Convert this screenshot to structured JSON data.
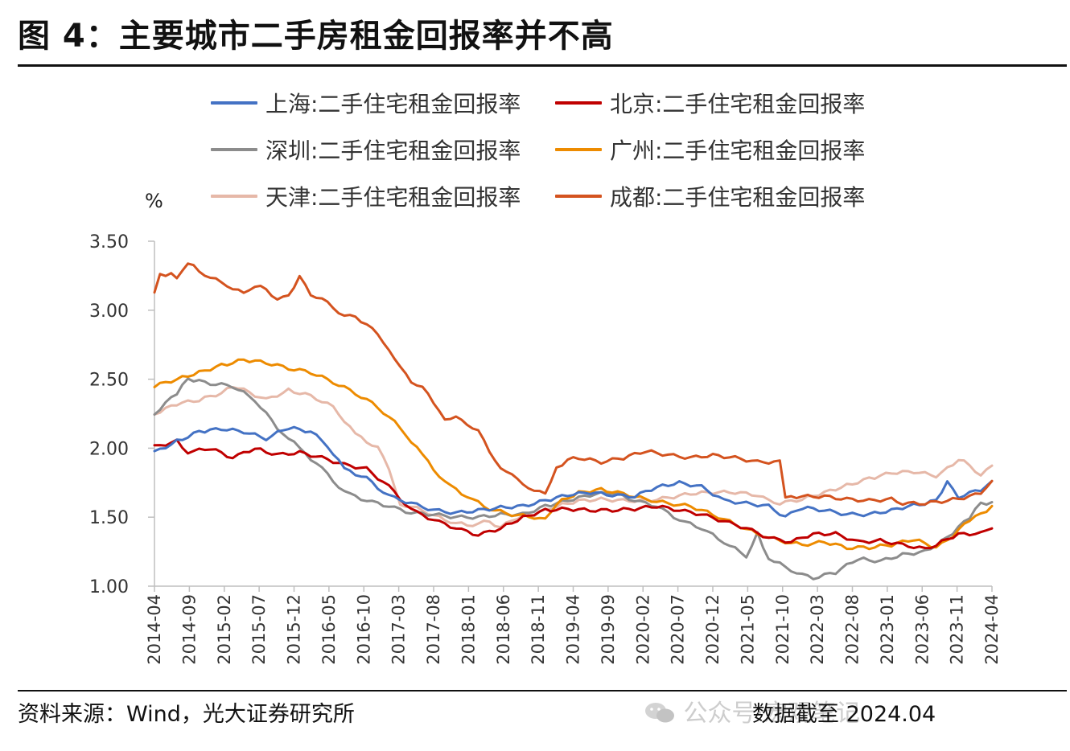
{
  "title": "图 4：主要城市二手房租金回报率并不高",
  "source": "资料来源：Wind，光大证券研究所",
  "cutoff_note": "数据截至 2024.04",
  "watermark": "公众号·宏观笔记",
  "chart_data": {
    "type": "line",
    "title": "",
    "ylabel": "%",
    "xlabel": "",
    "ylim": [
      1.0,
      3.5
    ],
    "yticks": [
      "3.50",
      "3.00",
      "2.50",
      "2.00",
      "1.50",
      "1.00"
    ],
    "x_tick_labels": [
      "2014-04",
      "2014-09",
      "2015-02",
      "2015-07",
      "2015-12",
      "2016-05",
      "2016-10",
      "2017-03",
      "2017-08",
      "2018-01",
      "2018-06",
      "2018-11",
      "2019-04",
      "2019-09",
      "2020-02",
      "2020-07",
      "2020-12",
      "2021-05",
      "2021-10",
      "2022-03",
      "2022-08",
      "2023-01",
      "2023-06",
      "2023-11",
      "2024-04"
    ],
    "x_start": "2014-04",
    "x_end": "2024-04",
    "n_points": 121,
    "series": [
      {
        "name": "上海:二手住宅租金回报率",
        "color": "#4472c4",
        "anchors": [
          [
            0,
            1.97
          ],
          [
            4,
            2.05
          ],
          [
            8,
            2.12
          ],
          [
            12,
            2.14
          ],
          [
            16,
            2.12
          ],
          [
            20,
            2.07
          ],
          [
            24,
            2.15
          ],
          [
            28,
            2.12
          ],
          [
            31,
            2.02
          ],
          [
            34,
            1.85
          ],
          [
            38,
            1.78
          ],
          [
            42,
            1.65
          ],
          [
            46,
            1.6
          ],
          [
            50,
            1.55
          ],
          [
            54,
            1.53
          ],
          [
            58,
            1.55
          ],
          [
            62,
            1.57
          ],
          [
            66,
            1.58
          ],
          [
            70,
            1.62
          ],
          [
            74,
            1.66
          ],
          [
            78,
            1.68
          ],
          [
            82,
            1.66
          ],
          [
            86,
            1.65
          ],
          [
            90,
            1.72
          ],
          [
            94,
            1.75
          ],
          [
            98,
            1.72
          ],
          [
            102,
            1.62
          ],
          [
            106,
            1.6
          ],
          [
            110,
            1.58
          ],
          [
            113,
            1.5
          ],
          [
            116,
            1.57
          ],
          [
            120,
            1.55
          ],
          [
            124,
            1.52
          ],
          [
            128,
            1.52
          ],
          [
            132,
            1.55
          ],
          [
            135,
            1.58
          ],
          [
            138,
            1.6
          ],
          [
            140,
            1.62
          ],
          [
            142,
            1.76
          ],
          [
            144,
            1.65
          ],
          [
            148,
            1.7
          ],
          [
            150,
            1.75
          ]
        ]
      },
      {
        "name": "北京:二手住宅租金回报率",
        "color": "#c00000",
        "anchors": [
          [
            0,
            2.01
          ],
          [
            4,
            2.05
          ],
          [
            6,
            1.97
          ],
          [
            10,
            2.0
          ],
          [
            14,
            1.93
          ],
          [
            18,
            2.0
          ],
          [
            22,
            1.95
          ],
          [
            26,
            1.97
          ],
          [
            30,
            1.93
          ],
          [
            34,
            1.88
          ],
          [
            38,
            1.85
          ],
          [
            42,
            1.72
          ],
          [
            46,
            1.55
          ],
          [
            50,
            1.48
          ],
          [
            54,
            1.42
          ],
          [
            58,
            1.37
          ],
          [
            62,
            1.42
          ],
          [
            66,
            1.5
          ],
          [
            70,
            1.55
          ],
          [
            74,
            1.56
          ],
          [
            78,
            1.55
          ],
          [
            82,
            1.55
          ],
          [
            86,
            1.56
          ],
          [
            90,
            1.58
          ],
          [
            94,
            1.55
          ],
          [
            98,
            1.52
          ],
          [
            102,
            1.47
          ],
          [
            106,
            1.42
          ],
          [
            110,
            1.35
          ],
          [
            114,
            1.32
          ],
          [
            118,
            1.38
          ],
          [
            122,
            1.38
          ],
          [
            126,
            1.32
          ],
          [
            130,
            1.33
          ],
          [
            134,
            1.3
          ],
          [
            138,
            1.27
          ],
          [
            140,
            1.3
          ],
          [
            144,
            1.38
          ],
          [
            148,
            1.38
          ],
          [
            150,
            1.43
          ]
        ]
      },
      {
        "name": "深圳:二手住宅租金回报率",
        "color": "#8c8c8c",
        "anchors": [
          [
            0,
            2.25
          ],
          [
            4,
            2.4
          ],
          [
            6,
            2.5
          ],
          [
            10,
            2.47
          ],
          [
            14,
            2.45
          ],
          [
            18,
            2.35
          ],
          [
            22,
            2.15
          ],
          [
            26,
            2.0
          ],
          [
            30,
            1.85
          ],
          [
            34,
            1.68
          ],
          [
            38,
            1.62
          ],
          [
            42,
            1.58
          ],
          [
            46,
            1.53
          ],
          [
            50,
            1.52
          ],
          [
            54,
            1.5
          ],
          [
            58,
            1.5
          ],
          [
            62,
            1.52
          ],
          [
            66,
            1.52
          ],
          [
            70,
            1.58
          ],
          [
            74,
            1.62
          ],
          [
            78,
            1.66
          ],
          [
            82,
            1.68
          ],
          [
            86,
            1.62
          ],
          [
            90,
            1.58
          ],
          [
            94,
            1.48
          ],
          [
            98,
            1.42
          ],
          [
            102,
            1.32
          ],
          [
            106,
            1.22
          ],
          [
            108,
            1.38
          ],
          [
            110,
            1.2
          ],
          [
            114,
            1.12
          ],
          [
            116,
            1.08
          ],
          [
            118,
            1.06
          ],
          [
            122,
            1.1
          ],
          [
            126,
            1.2
          ],
          [
            130,
            1.18
          ],
          [
            134,
            1.23
          ],
          [
            138,
            1.25
          ],
          [
            142,
            1.35
          ],
          [
            146,
            1.5
          ],
          [
            148,
            1.6
          ],
          [
            150,
            1.6
          ]
        ]
      },
      {
        "name": "广州:二手住宅租金回报率",
        "color": "#ed8b00",
        "anchors": [
          [
            0,
            2.45
          ],
          [
            4,
            2.5
          ],
          [
            8,
            2.55
          ],
          [
            12,
            2.6
          ],
          [
            16,
            2.64
          ],
          [
            20,
            2.62
          ],
          [
            24,
            2.58
          ],
          [
            28,
            2.55
          ],
          [
            32,
            2.48
          ],
          [
            36,
            2.4
          ],
          [
            40,
            2.3
          ],
          [
            44,
            2.15
          ],
          [
            48,
            1.95
          ],
          [
            52,
            1.75
          ],
          [
            56,
            1.65
          ],
          [
            60,
            1.56
          ],
          [
            64,
            1.52
          ],
          [
            68,
            1.5
          ],
          [
            70,
            1.48
          ],
          [
            72,
            1.6
          ],
          [
            76,
            1.68
          ],
          [
            80,
            1.7
          ],
          [
            84,
            1.67
          ],
          [
            88,
            1.63
          ],
          [
            92,
            1.6
          ],
          [
            96,
            1.58
          ],
          [
            100,
            1.52
          ],
          [
            104,
            1.45
          ],
          [
            108,
            1.38
          ],
          [
            112,
            1.33
          ],
          [
            116,
            1.3
          ],
          [
            120,
            1.32
          ],
          [
            124,
            1.28
          ],
          [
            128,
            1.28
          ],
          [
            132,
            1.3
          ],
          [
            136,
            1.34
          ],
          [
            140,
            1.28
          ],
          [
            142,
            1.33
          ],
          [
            146,
            1.48
          ],
          [
            148,
            1.52
          ],
          [
            150,
            1.58
          ]
        ]
      },
      {
        "name": "天津:二手住宅租金回报率",
        "color": "#e6b8a8",
        "anchors": [
          [
            0,
            2.25
          ],
          [
            4,
            2.32
          ],
          [
            8,
            2.35
          ],
          [
            12,
            2.4
          ],
          [
            14,
            2.45
          ],
          [
            16,
            2.42
          ],
          [
            20,
            2.35
          ],
          [
            24,
            2.42
          ],
          [
            28,
            2.38
          ],
          [
            32,
            2.3
          ],
          [
            36,
            2.1
          ],
          [
            40,
            2.0
          ],
          [
            42,
            1.85
          ],
          [
            44,
            1.6
          ],
          [
            48,
            1.55
          ],
          [
            52,
            1.48
          ],
          [
            56,
            1.44
          ],
          [
            60,
            1.47
          ],
          [
            62,
            1.42
          ],
          [
            64,
            1.48
          ],
          [
            68,
            1.52
          ],
          [
            72,
            1.58
          ],
          [
            76,
            1.62
          ],
          [
            80,
            1.63
          ],
          [
            84,
            1.62
          ],
          [
            88,
            1.62
          ],
          [
            92,
            1.64
          ],
          [
            96,
            1.67
          ],
          [
            100,
            1.68
          ],
          [
            104,
            1.68
          ],
          [
            108,
            1.66
          ],
          [
            110,
            1.62
          ],
          [
            112,
            1.6
          ],
          [
            116,
            1.63
          ],
          [
            120,
            1.68
          ],
          [
            124,
            1.73
          ],
          [
            128,
            1.78
          ],
          [
            132,
            1.82
          ],
          [
            136,
            1.83
          ],
          [
            140,
            1.8
          ],
          [
            142,
            1.85
          ],
          [
            144,
            1.92
          ],
          [
            146,
            1.88
          ],
          [
            148,
            1.8
          ],
          [
            150,
            1.87
          ]
        ]
      },
      {
        "name": "成都:二手住宅租金回报率",
        "color": "#d4531f",
        "anchors": [
          [
            0,
            3.13
          ],
          [
            1,
            3.25
          ],
          [
            3,
            3.27
          ],
          [
            4,
            3.22
          ],
          [
            6,
            3.35
          ],
          [
            8,
            3.28
          ],
          [
            12,
            3.2
          ],
          [
            16,
            3.12
          ],
          [
            18,
            3.18
          ],
          [
            20,
            3.15
          ],
          [
            22,
            3.08
          ],
          [
            24,
            3.1
          ],
          [
            26,
            3.25
          ],
          [
            28,
            3.12
          ],
          [
            30,
            3.08
          ],
          [
            32,
            3.02
          ],
          [
            34,
            2.96
          ],
          [
            36,
            2.95
          ],
          [
            38,
            2.9
          ],
          [
            40,
            2.82
          ],
          [
            42,
            2.72
          ],
          [
            44,
            2.58
          ],
          [
            46,
            2.48
          ],
          [
            48,
            2.45
          ],
          [
            50,
            2.32
          ],
          [
            52,
            2.22
          ],
          [
            54,
            2.22
          ],
          [
            56,
            2.18
          ],
          [
            58,
            2.12
          ],
          [
            60,
            1.98
          ],
          [
            62,
            1.86
          ],
          [
            64,
            1.8
          ],
          [
            66,
            1.75
          ],
          [
            68,
            1.68
          ],
          [
            70,
            1.68
          ],
          [
            72,
            1.85
          ],
          [
            74,
            1.92
          ],
          [
            76,
            1.93
          ],
          [
            80,
            1.9
          ],
          [
            84,
            1.93
          ],
          [
            88,
            1.98
          ],
          [
            92,
            1.95
          ],
          [
            96,
            1.93
          ],
          [
            100,
            1.95
          ],
          [
            104,
            1.93
          ],
          [
            108,
            1.9
          ],
          [
            112,
            1.9
          ],
          [
            113,
            1.65
          ],
          [
            116,
            1.65
          ],
          [
            120,
            1.65
          ],
          [
            124,
            1.63
          ],
          [
            128,
            1.62
          ],
          [
            132,
            1.63
          ],
          [
            134,
            1.6
          ],
          [
            138,
            1.6
          ],
          [
            142,
            1.62
          ],
          [
            146,
            1.65
          ],
          [
            148,
            1.68
          ],
          [
            150,
            1.75
          ]
        ]
      }
    ]
  }
}
